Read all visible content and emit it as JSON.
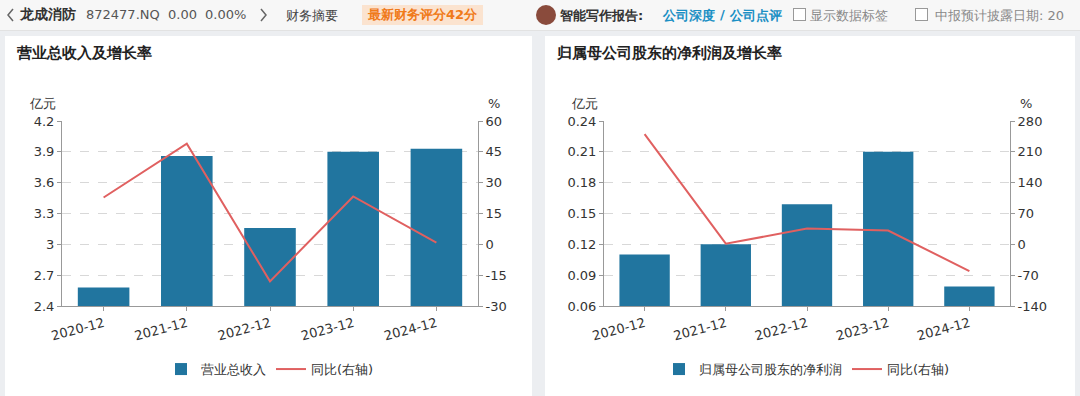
{
  "header": {
    "name": "龙成消防",
    "code": "872477.NQ",
    "price": "0.00",
    "change": "0.00%",
    "tab": "财务摘要",
    "score": "最新财务评分42分",
    "report_label": "智能写作报告:",
    "report_links": [
      "公司深度",
      "公司点评"
    ],
    "separator": "/",
    "checkbox_label": "显示数据标签",
    "date_label": "中报预计披露日期: 20"
  },
  "chart_data": [
    {
      "type": "bar",
      "title": "营业总收入及增长率",
      "ylabel": "亿元",
      "y2label": "%",
      "categories": [
        "2020-12",
        "2021-12",
        "2022-12",
        "2023-12",
        "2024-12"
      ],
      "series": [
        {
          "name": "营业总收入",
          "type": "bar",
          "color": "#21759f",
          "values": [
            2.58,
            3.86,
            3.16,
            3.9,
            3.93
          ]
        },
        {
          "name": "同比(右轴)",
          "type": "line",
          "axis": "y2",
          "color": "#e06060",
          "values": [
            22.8,
            49,
            -18,
            23.3,
            0.8
          ]
        }
      ],
      "ylim": [
        2.4,
        4.2
      ],
      "yticks": [
        2.4,
        2.7,
        3,
        3.3,
        3.6,
        3.9,
        4.2
      ],
      "y2lim": [
        -30,
        60
      ],
      "y2ticks": [
        -30,
        -15,
        0,
        15,
        30,
        45,
        60
      ],
      "grid": true,
      "legend": "bottom"
    },
    {
      "type": "bar",
      "title": "归属母公司股东的净利润及增长率",
      "ylabel": "亿元",
      "y2label": "%",
      "categories": [
        "2020-12",
        "2021-12",
        "2022-12",
        "2023-12",
        "2024-12"
      ],
      "series": [
        {
          "name": "归属母公司股东的净利润",
          "type": "bar",
          "color": "#21759f",
          "values": [
            0.11,
            0.12,
            0.159,
            0.21,
            0.079
          ]
        },
        {
          "name": "同比(右轴)",
          "type": "line",
          "axis": "y2",
          "color": "#e06060",
          "values": [
            250,
            1.4,
            35.7,
            31.4,
            -60.7
          ]
        }
      ],
      "ylim": [
        0.06,
        0.24
      ],
      "yticks": [
        0.06,
        0.09,
        0.12,
        0.15,
        0.18,
        0.21,
        0.24
      ],
      "y2lim": [
        -140,
        280
      ],
      "y2ticks": [
        -140,
        -70,
        0,
        70,
        140,
        210,
        280
      ],
      "grid": true,
      "legend": "bottom"
    }
  ]
}
